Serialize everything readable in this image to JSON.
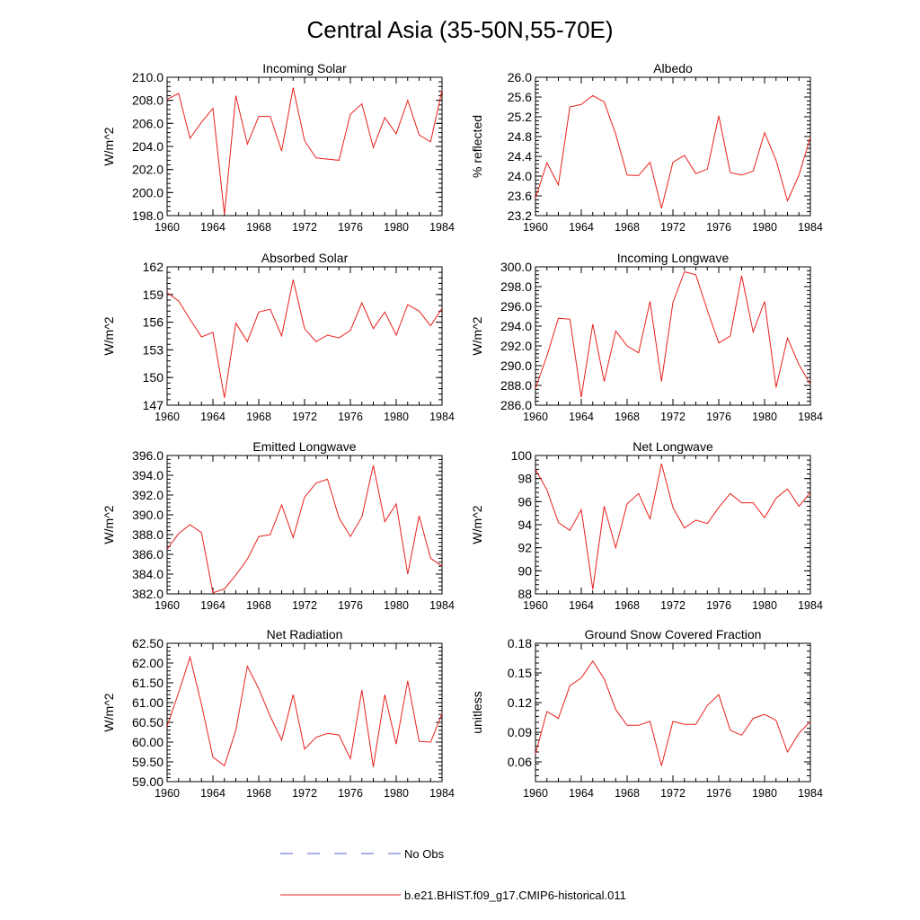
{
  "figure": {
    "title": "Central Asia (35-50N,55-70E)"
  },
  "colors": {
    "model": "#e8201c",
    "obs": "#5560c8",
    "axis": "#000000"
  },
  "legend": {
    "placement": "bottom-center",
    "entries": [
      {
        "label": "No Obs",
        "style": "dashed",
        "color": "#5560c8"
      },
      {
        "label": "b.e21.BHIST.f09_g17.CMIP6-historical.011",
        "style": "solid",
        "color": "#e8201c"
      }
    ]
  },
  "chart_data": [
    {
      "type": "line",
      "title": "Incoming Solar",
      "xlabel": "",
      "ylabel": "W/m^2",
      "xlim": [
        1960,
        1984
      ],
      "ylim": [
        198.0,
        210.0
      ],
      "xticks": [
        "1960",
        "1964",
        "1968",
        "1972",
        "1976",
        "1980",
        "1984"
      ],
      "yticks": [
        "198.0",
        "200.0",
        "202.0",
        "204.0",
        "206.0",
        "208.0",
        "210.0"
      ],
      "x": [
        1960,
        1961,
        1962,
        1963,
        1964,
        1965,
        1966,
        1967,
        1968,
        1969,
        1970,
        1971,
        1972,
        1973,
        1974,
        1975,
        1976,
        1977,
        1978,
        1979,
        1980,
        1981,
        1982,
        1983,
        1984
      ],
      "series": [
        {
          "name": "b.e21.BHIST.f09_g17.CMIP6-historical.011",
          "values": [
            208.1,
            208.6,
            204.7,
            206.1,
            207.3,
            198.1,
            208.4,
            204.2,
            206.6,
            206.6,
            203.6,
            209.1,
            204.5,
            203.0,
            202.9,
            202.8,
            206.8,
            207.7,
            203.9,
            206.5,
            205.1,
            208.0,
            205.0,
            204.4,
            208.9
          ]
        }
      ]
    },
    {
      "type": "line",
      "title": "Albedo",
      "xlabel": "",
      "ylabel": "% reflected",
      "xlim": [
        1960,
        1984
      ],
      "ylim": [
        23.2,
        26.0
      ],
      "xticks": [
        "1960",
        "1964",
        "1968",
        "1972",
        "1976",
        "1980",
        "1984"
      ],
      "yticks": [
        "23.2",
        "23.6",
        "24.0",
        "24.4",
        "24.8",
        "25.2",
        "25.6",
        "26.0"
      ],
      "x": [
        1960,
        1961,
        1962,
        1963,
        1964,
        1965,
        1966,
        1967,
        1968,
        1969,
        1970,
        1971,
        1972,
        1973,
        1974,
        1975,
        1976,
        1977,
        1978,
        1979,
        1980,
        1981,
        1982,
        1983,
        1984
      ],
      "series": [
        {
          "name": "b.e21.BHIST.f09_g17.CMIP6-historical.011",
          "values": [
            23.55,
            24.27,
            23.82,
            25.4,
            25.45,
            25.63,
            25.5,
            24.85,
            24.02,
            24.01,
            24.28,
            23.35,
            24.28,
            24.42,
            24.05,
            24.14,
            25.22,
            24.07,
            24.02,
            24.1,
            24.88,
            24.32,
            23.5,
            24.02,
            24.79
          ]
        }
      ]
    },
    {
      "type": "line",
      "title": "Absorbed Solar",
      "xlabel": "",
      "ylabel": "W/m^2",
      "xlim": [
        1960,
        1984
      ],
      "ylim": [
        147,
        162
      ],
      "xticks": [
        "1960",
        "1964",
        "1968",
        "1972",
        "1976",
        "1980",
        "1984"
      ],
      "yticks": [
        "147",
        "150",
        "153",
        "156",
        "159",
        "162"
      ],
      "x": [
        1960,
        1961,
        1962,
        1963,
        1964,
        1965,
        1966,
        1967,
        1968,
        1969,
        1970,
        1971,
        1972,
        1973,
        1974,
        1975,
        1976,
        1977,
        1978,
        1979,
        1980,
        1981,
        1982,
        1983,
        1984
      ],
      "series": [
        {
          "name": "b.e21.BHIST.f09_g17.CMIP6-historical.011",
          "values": [
            159.2,
            158.3,
            156.3,
            154.4,
            154.9,
            147.8,
            155.9,
            153.9,
            157.1,
            157.4,
            154.5,
            160.6,
            155.3,
            153.9,
            154.6,
            154.3,
            155.1,
            158.1,
            155.3,
            157.1,
            154.6,
            157.9,
            157.2,
            155.6,
            157.5
          ]
        }
      ]
    },
    {
      "type": "line",
      "title": "Incoming Longwave",
      "xlabel": "",
      "ylabel": "W/m^2",
      "xlim": [
        1960,
        1984
      ],
      "ylim": [
        286.0,
        300.0
      ],
      "xticks": [
        "1960",
        "1964",
        "1968",
        "1972",
        "1976",
        "1980",
        "1984"
      ],
      "yticks": [
        "286.0",
        "288.0",
        "290.0",
        "292.0",
        "294.0",
        "296.0",
        "298.0",
        "300.0"
      ],
      "x": [
        1960,
        1961,
        1962,
        1963,
        1964,
        1965,
        1966,
        1967,
        1968,
        1969,
        1970,
        1971,
        1972,
        1973,
        1974,
        1975,
        1976,
        1977,
        1978,
        1979,
        1980,
        1981,
        1982,
        1983,
        1984
      ],
      "series": [
        {
          "name": "b.e21.BHIST.f09_g17.CMIP6-historical.011",
          "values": [
            287.7,
            291.0,
            294.8,
            294.7,
            286.8,
            294.2,
            288.4,
            293.5,
            292.0,
            291.3,
            296.5,
            288.4,
            296.4,
            299.5,
            299.2,
            295.6,
            292.3,
            293.0,
            299.1,
            293.4,
            296.5,
            287.8,
            292.8,
            290.1,
            288.1
          ]
        }
      ]
    },
    {
      "type": "line",
      "title": "Emitted Longwave",
      "xlabel": "",
      "ylabel": "W/m^2",
      "xlim": [
        1960,
        1984
      ],
      "ylim": [
        382.0,
        396.0
      ],
      "xticks": [
        "1960",
        "1964",
        "1968",
        "1972",
        "1976",
        "1980",
        "1984"
      ],
      "yticks": [
        "382.0",
        "384.0",
        "386.0",
        "388.0",
        "390.0",
        "392.0",
        "394.0",
        "396.0"
      ],
      "x": [
        1960,
        1961,
        1962,
        1963,
        1964,
        1965,
        1966,
        1967,
        1968,
        1969,
        1970,
        1971,
        1972,
        1973,
        1974,
        1975,
        1976,
        1977,
        1978,
        1979,
        1980,
        1981,
        1982,
        1983,
        1984
      ],
      "series": [
        {
          "name": "b.e21.BHIST.f09_g17.CMIP6-historical.011",
          "values": [
            386.5,
            388.1,
            389.0,
            388.2,
            382.1,
            382.5,
            383.9,
            385.5,
            387.8,
            388.0,
            391.0,
            387.7,
            391.8,
            393.2,
            393.6,
            389.7,
            387.8,
            389.8,
            395.0,
            389.3,
            391.1,
            384.0,
            389.9,
            385.6,
            384.8
          ]
        }
      ]
    },
    {
      "type": "line",
      "title": "Net Longwave",
      "xlabel": "",
      "ylabel": "W/m^2",
      "xlim": [
        1960,
        1984
      ],
      "ylim": [
        88,
        100
      ],
      "xticks": [
        "1960",
        "1964",
        "1968",
        "1972",
        "1976",
        "1980",
        "1984"
      ],
      "yticks": [
        "88",
        "90",
        "92",
        "94",
        "96",
        "98",
        "100"
      ],
      "x": [
        1960,
        1961,
        1962,
        1963,
        1964,
        1965,
        1966,
        1967,
        1968,
        1969,
        1970,
        1971,
        1972,
        1973,
        1974,
        1975,
        1976,
        1977,
        1978,
        1979,
        1980,
        1981,
        1982,
        1983,
        1984
      ],
      "series": [
        {
          "name": "b.e21.BHIST.f09_g17.CMIP6-historical.011",
          "values": [
            98.8,
            97.0,
            94.2,
            93.5,
            95.3,
            88.4,
            95.6,
            92.0,
            95.8,
            96.7,
            94.5,
            99.3,
            95.5,
            93.7,
            94.4,
            94.1,
            95.5,
            96.7,
            95.9,
            95.9,
            94.6,
            96.3,
            97.1,
            95.6,
            96.8
          ]
        }
      ]
    },
    {
      "type": "line",
      "title": "Net Radiation",
      "xlabel": "",
      "ylabel": "W/m^2",
      "xlim": [
        1960,
        1984
      ],
      "ylim": [
        59.0,
        62.5
      ],
      "xticks": [
        "1960",
        "1964",
        "1968",
        "1972",
        "1976",
        "1980",
        "1984"
      ],
      "yticks": [
        "59.00",
        "59.50",
        "60.00",
        "60.50",
        "61.00",
        "61.50",
        "62.00",
        "62.50"
      ],
      "x": [
        1960,
        1961,
        1962,
        1963,
        1964,
        1965,
        1966,
        1967,
        1968,
        1969,
        1970,
        1971,
        1972,
        1973,
        1974,
        1975,
        1976,
        1977,
        1978,
        1979,
        1980,
        1981,
        1982,
        1983,
        1984
      ],
      "series": [
        {
          "name": "b.e21.BHIST.f09_g17.CMIP6-historical.011",
          "values": [
            60.4,
            61.25,
            62.15,
            60.95,
            59.62,
            59.4,
            60.3,
            61.92,
            61.35,
            60.65,
            60.05,
            61.2,
            59.82,
            60.12,
            60.22,
            60.18,
            59.58,
            61.32,
            59.37,
            61.2,
            59.95,
            61.55,
            60.02,
            60.0,
            60.72
          ]
        }
      ]
    },
    {
      "type": "line",
      "title": "Ground Snow Covered Fraction",
      "xlabel": "",
      "ylabel": "unitless",
      "xlim": [
        1960,
        1984
      ],
      "ylim": [
        0.04,
        0.18
      ],
      "xticks": [
        "1960",
        "1964",
        "1968",
        "1972",
        "1976",
        "1980",
        "1984"
      ],
      "yticks": [
        "0.06",
        "0.09",
        "0.12",
        "0.15",
        "0.18"
      ],
      "ytick_values": [
        0.06,
        0.09,
        0.12,
        0.15,
        0.18
      ],
      "x": [
        1960,
        1961,
        1962,
        1963,
        1964,
        1965,
        1966,
        1967,
        1968,
        1969,
        1970,
        1971,
        1972,
        1973,
        1974,
        1975,
        1976,
        1977,
        1978,
        1979,
        1980,
        1981,
        1982,
        1983,
        1984
      ],
      "series": [
        {
          "name": "b.e21.BHIST.f09_g17.CMIP6-historical.011",
          "values": [
            0.068,
            0.111,
            0.104,
            0.137,
            0.145,
            0.162,
            0.144,
            0.113,
            0.097,
            0.097,
            0.101,
            0.056,
            0.101,
            0.098,
            0.098,
            0.117,
            0.128,
            0.092,
            0.087,
            0.104,
            0.108,
            0.102,
            0.07,
            0.089,
            0.101
          ]
        }
      ]
    }
  ]
}
